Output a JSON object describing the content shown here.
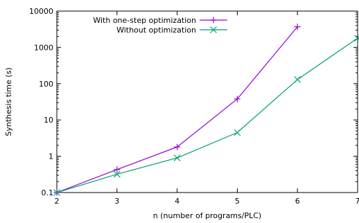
{
  "chart_data": {
    "type": "line",
    "xlabel": "n (number of programs/PLC)",
    "ylabel": "Synthesis time (s)",
    "x": [
      2,
      3,
      4,
      5,
      6,
      7
    ],
    "xlim": [
      2,
      7
    ],
    "ylim": [
      0.1,
      10000
    ],
    "yscale": "log",
    "x_ticks": [
      "2",
      "3",
      "4",
      "5",
      "6",
      "7"
    ],
    "y_ticks": [
      "0.1",
      "1",
      "10",
      "100",
      "1000",
      "10000"
    ],
    "y_tick_values": [
      0.1,
      1,
      10,
      100,
      1000,
      10000
    ],
    "grid": false,
    "legend_position": "top-left",
    "series": [
      {
        "name": "With one-step optimization",
        "x": [
          2,
          3,
          4,
          5,
          6
        ],
        "values": [
          0.1,
          0.43,
          1.8,
          38,
          3700
        ],
        "color": "#9400d3",
        "marker": "plus"
      },
      {
        "name": "Without optimization",
        "x": [
          2,
          3,
          4,
          5,
          6,
          7
        ],
        "values": [
          0.1,
          0.32,
          0.9,
          4.5,
          130,
          1800
        ],
        "color": "#009e73",
        "marker": "cross"
      }
    ]
  }
}
